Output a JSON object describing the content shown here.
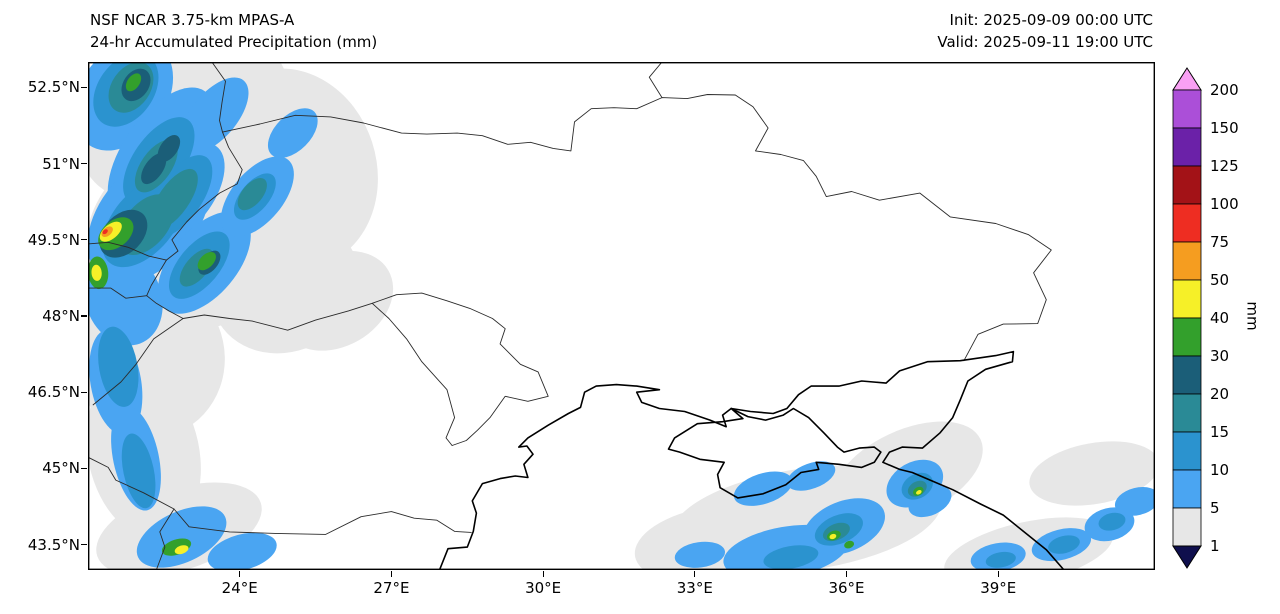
{
  "header": {
    "model_line": "NSF NCAR 3.75-km MPAS-A",
    "product_line": "24-hr Accumulated Precipitation (mm)",
    "init_line": "Init: 2025-09-09 00:00 UTC",
    "valid_line": "Valid: 2025-09-11 19:00 UTC"
  },
  "map": {
    "lon_min": 21.0,
    "lon_max": 42.1,
    "lat_min": 43.0,
    "lat_max": 53.0
  },
  "axes": {
    "x_ticks": [
      {
        "label": "24°E",
        "lon": 24
      },
      {
        "label": "27°E",
        "lon": 27
      },
      {
        "label": "30°E",
        "lon": 30
      },
      {
        "label": "33°E",
        "lon": 33
      },
      {
        "label": "36°E",
        "lon": 36
      },
      {
        "label": "39°E",
        "lon": 39
      }
    ],
    "y_ticks": [
      {
        "label": "52.5°N",
        "lat": 52.5
      },
      {
        "label": "51°N",
        "lat": 51
      },
      {
        "label": "49.5°N",
        "lat": 49.5
      },
      {
        "label": "48°N",
        "lat": 48
      },
      {
        "label": "46.5°N",
        "lat": 46.5
      },
      {
        "label": "45°N",
        "lat": 45
      },
      {
        "label": "43.5°N",
        "lat": 43.5
      }
    ]
  },
  "colorbar": {
    "unit_label": "mm",
    "tick_labels": [
      "200",
      "150",
      "125",
      "100",
      "75",
      "50",
      "40",
      "30",
      "20",
      "15",
      "10",
      "5",
      "1"
    ],
    "bands": [
      {
        "min": 1,
        "max": 5,
        "color": "#e7e7e7"
      },
      {
        "min": 5,
        "max": 10,
        "color": "#4aa5f2"
      },
      {
        "min": 10,
        "max": 15,
        "color": "#2b93cf"
      },
      {
        "min": 15,
        "max": 20,
        "color": "#2a8a96"
      },
      {
        "min": 20,
        "max": 30,
        "color": "#1b5e78"
      },
      {
        "min": 30,
        "max": 40,
        "color": "#33a02c"
      },
      {
        "min": 40,
        "max": 50,
        "color": "#f6f028"
      },
      {
        "min": 50,
        "max": 75,
        "color": "#f59d20"
      },
      {
        "min": 75,
        "max": 100,
        "color": "#ee2d22"
      },
      {
        "min": 100,
        "max": 125,
        "color": "#a31217"
      },
      {
        "min": 125,
        "max": 150,
        "color": "#6b21a8"
      },
      {
        "min": 150,
        "max": 200,
        "color": "#ab4fd8"
      }
    ],
    "over_color": "#f9a0f4",
    "under_color": "#0f0f4d"
  },
  "chart_data": {
    "type": "heatmap",
    "model": "NSF NCAR 3.75-km MPAS-A",
    "title": "24-hr Accumulated Precipitation (mm)",
    "init": "2025-09-09 00:00 UTC",
    "valid": "2025-09-11 19:00 UTC",
    "units": "mm",
    "levels": [
      1,
      5,
      10,
      15,
      20,
      30,
      40,
      50,
      75,
      100,
      125,
      150,
      200
    ],
    "lon_range": [
      21.0,
      42.1
    ],
    "lat_range": [
      43.0,
      53.0
    ],
    "precip_blobs_fields": [
      "level_mm",
      "lon",
      "lat",
      "rx_deg",
      "ry_deg",
      "rotate_deg"
    ],
    "precip_blobs": [
      [
        1,
        22.9,
        51.9,
        2.2,
        1.5,
        -28
      ],
      [
        1,
        23.3,
        49.7,
        2.4,
        1.9,
        -22
      ],
      [
        1,
        25.0,
        50.9,
        1.7,
        2.0,
        -18
      ],
      [
        1,
        24.9,
        48.6,
        1.5,
        1.3,
        -25
      ],
      [
        1,
        22.2,
        47.2,
        1.5,
        1.6,
        -12
      ],
      [
        1,
        22.1,
        45.3,
        1.1,
        1.7,
        -12
      ],
      [
        1,
        22.8,
        43.8,
        1.7,
        0.8,
        -18
      ],
      [
        1,
        25.9,
        48.3,
        1.2,
        0.9,
        -30
      ],
      [
        1,
        35.2,
        44.0,
        2.7,
        1.0,
        -8
      ],
      [
        1,
        37.2,
        44.9,
        1.6,
        0.85,
        -25
      ],
      [
        1,
        33.4,
        43.5,
        1.6,
        0.75,
        -8
      ],
      [
        1,
        40.9,
        44.9,
        1.3,
        0.6,
        -10
      ],
      [
        1,
        39.6,
        43.35,
        1.7,
        0.6,
        -12
      ],
      [
        5,
        21.7,
        52.35,
        1.2,
        0.85,
        -55
      ],
      [
        5,
        22.45,
        51.2,
        1.5,
        0.75,
        -55
      ],
      [
        5,
        23.5,
        51.95,
        0.9,
        0.45,
        -50
      ],
      [
        5,
        22.2,
        49.95,
        1.5,
        0.95,
        -50
      ],
      [
        5,
        22.9,
        50.45,
        1.1,
        0.6,
        -55
      ],
      [
        5,
        23.3,
        49.05,
        1.2,
        0.65,
        -50
      ],
      [
        5,
        24.35,
        50.35,
        0.95,
        0.5,
        -50
      ],
      [
        5,
        21.7,
        48.35,
        0.75,
        0.95,
        -20
      ],
      [
        5,
        21.55,
        46.7,
        0.5,
        1.05,
        -10
      ],
      [
        5,
        21.95,
        45.2,
        0.45,
        1.05,
        -12
      ],
      [
        5,
        22.85,
        43.65,
        0.95,
        0.5,
        -25
      ],
      [
        5,
        24.05,
        43.35,
        0.7,
        0.35,
        -15
      ],
      [
        5,
        25.05,
        51.6,
        0.6,
        0.35,
        -45
      ],
      [
        5,
        34.8,
        43.35,
        1.25,
        0.5,
        -10
      ],
      [
        5,
        35.95,
        43.85,
        0.85,
        0.5,
        -22
      ],
      [
        5,
        34.35,
        44.6,
        0.6,
        0.3,
        -18
      ],
      [
        5,
        37.35,
        44.7,
        0.6,
        0.42,
        -30
      ],
      [
        5,
        37.65,
        44.35,
        0.45,
        0.27,
        -25
      ],
      [
        5,
        39.0,
        43.25,
        0.55,
        0.28,
        -10
      ],
      [
        5,
        40.25,
        43.5,
        0.6,
        0.3,
        -14
      ],
      [
        5,
        41.2,
        43.9,
        0.5,
        0.32,
        -14
      ],
      [
        5,
        41.75,
        44.35,
        0.45,
        0.27,
        -14
      ],
      [
        5,
        35.3,
        44.85,
        0.5,
        0.25,
        -20
      ],
      [
        5,
        33.1,
        43.3,
        0.5,
        0.25,
        -8
      ],
      [
        10,
        21.75,
        52.45,
        0.8,
        0.55,
        -55
      ],
      [
        10,
        22.4,
        51.05,
        1.0,
        0.5,
        -55
      ],
      [
        10,
        22.1,
        49.85,
        1.05,
        0.6,
        -50
      ],
      [
        10,
        22.8,
        50.35,
        0.95,
        0.45,
        -55
      ],
      [
        10,
        23.2,
        49.0,
        0.8,
        0.4,
        -50
      ],
      [
        10,
        21.6,
        47.0,
        0.38,
        0.8,
        -10
      ],
      [
        10,
        22.0,
        44.95,
        0.3,
        0.75,
        -12
      ],
      [
        10,
        24.3,
        50.35,
        0.55,
        0.28,
        -50
      ],
      [
        10,
        35.85,
        43.8,
        0.5,
        0.28,
        -22
      ],
      [
        10,
        34.9,
        43.25,
        0.55,
        0.22,
        -10
      ],
      [
        10,
        37.4,
        44.65,
        0.33,
        0.24,
        -30
      ],
      [
        10,
        40.3,
        43.5,
        0.32,
        0.17,
        -14
      ],
      [
        10,
        41.25,
        43.95,
        0.27,
        0.17,
        -14
      ],
      [
        10,
        39.05,
        43.2,
        0.3,
        0.15,
        -10
      ],
      [
        15,
        21.85,
        52.5,
        0.55,
        0.38,
        -55
      ],
      [
        15,
        22.35,
        50.95,
        0.6,
        0.3,
        -55
      ],
      [
        15,
        22.15,
        49.8,
        0.7,
        0.42,
        -50
      ],
      [
        15,
        22.7,
        50.3,
        0.7,
        0.3,
        -55
      ],
      [
        15,
        24.25,
        50.4,
        0.38,
        0.2,
        -50
      ],
      [
        15,
        23.15,
        48.95,
        0.45,
        0.22,
        -50
      ],
      [
        15,
        35.8,
        43.75,
        0.28,
        0.16,
        -22
      ],
      [
        15,
        37.4,
        44.6,
        0.2,
        0.14,
        -30
      ],
      [
        20,
        21.95,
        52.55,
        0.35,
        0.25,
        -55
      ],
      [
        20,
        22.3,
        50.9,
        0.35,
        0.18,
        -55
      ],
      [
        20,
        21.7,
        49.62,
        0.55,
        0.38,
        -45
      ],
      [
        20,
        23.4,
        49.05,
        0.28,
        0.16,
        -50
      ],
      [
        20,
        22.6,
        51.3,
        0.3,
        0.17,
        -55
      ],
      [
        30,
        21.55,
        49.62,
        0.4,
        0.26,
        -40
      ],
      [
        30,
        21.2,
        48.85,
        0.2,
        0.32,
        -5
      ],
      [
        30,
        23.35,
        49.08,
        0.22,
        0.13,
        -45
      ],
      [
        30,
        22.75,
        43.45,
        0.3,
        0.15,
        -18
      ],
      [
        30,
        35.75,
        43.68,
        0.14,
        0.09,
        -20
      ],
      [
        30,
        36.05,
        43.5,
        0.1,
        0.07,
        -20
      ],
      [
        30,
        37.42,
        44.55,
        0.11,
        0.08,
        -30
      ],
      [
        30,
        21.9,
        52.6,
        0.2,
        0.12,
        -55
      ],
      [
        40,
        21.45,
        49.66,
        0.26,
        0.14,
        -40
      ],
      [
        40,
        21.17,
        48.85,
        0.1,
        0.16,
        -5
      ],
      [
        40,
        22.85,
        43.4,
        0.14,
        0.08,
        -18
      ],
      [
        40,
        35.73,
        43.66,
        0.07,
        0.05,
        -20
      ],
      [
        40,
        37.43,
        44.53,
        0.06,
        0.04,
        -30
      ],
      [
        50,
        21.38,
        49.66,
        0.13,
        0.08,
        -40
      ],
      [
        75,
        21.34,
        49.66,
        0.06,
        0.04,
        -40
      ]
    ]
  }
}
